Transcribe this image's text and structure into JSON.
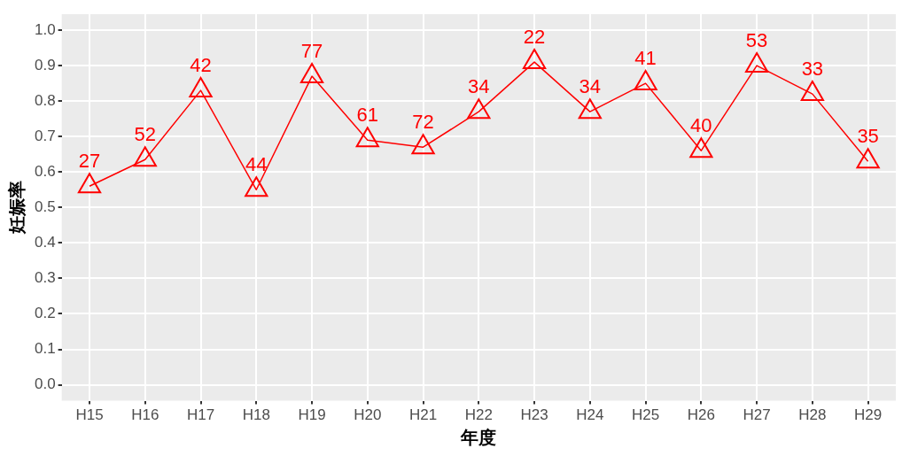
{
  "chart_data": {
    "type": "line",
    "xlabel": "年度",
    "ylabel": "妊娠率",
    "categories": [
      "H15",
      "H16",
      "H17",
      "H18",
      "H19",
      "H20",
      "H21",
      "H22",
      "H23",
      "H24",
      "H25",
      "H26",
      "H27",
      "H28",
      "H29"
    ],
    "series": [
      {
        "color": "#ff0000",
        "values": [
          0.56,
          0.635,
          0.83,
          0.55,
          0.87,
          0.69,
          0.67,
          0.77,
          0.91,
          0.77,
          0.85,
          0.66,
          0.9,
          0.82,
          0.63
        ]
      }
    ],
    "annotations": [
      {
        "text": "27",
        "x": "H15",
        "y": 0.56
      },
      {
        "text": "52",
        "x": "H16",
        "y": 0.635
      },
      {
        "text": "42",
        "x": "H17",
        "y": 0.83
      },
      {
        "text": "44",
        "x": "H18",
        "y": 0.55
      },
      {
        "text": "77",
        "x": "H19",
        "y": 0.87
      },
      {
        "text": "61",
        "x": "H20",
        "y": 0.69
      },
      {
        "text": "72",
        "x": "H21",
        "y": 0.67
      },
      {
        "text": "34",
        "x": "H22",
        "y": 0.77
      },
      {
        "text": "22",
        "x": "H23",
        "y": 0.91
      },
      {
        "text": "34",
        "x": "H24",
        "y": 0.77
      },
      {
        "text": "41",
        "x": "H25",
        "y": 0.85
      },
      {
        "text": "40",
        "x": "H26",
        "y": 0.66
      },
      {
        "text": "53",
        "x": "H27",
        "y": 0.9
      },
      {
        "text": "33",
        "x": "H28",
        "y": 0.82
      },
      {
        "text": "35",
        "x": "H29",
        "y": 0.63
      }
    ],
    "ylim": [
      -0.045,
      1.045
    ],
    "yticks": [
      {
        "value": 0,
        "label": "0.0"
      },
      {
        "value": 0.1,
        "label": "0.1"
      },
      {
        "value": 0.2,
        "label": "0.2"
      },
      {
        "value": 0.3,
        "label": "0.3"
      },
      {
        "value": 0.4,
        "label": "0.4"
      },
      {
        "value": 0.5,
        "label": "0.5"
      },
      {
        "value": 0.6,
        "label": "0.6"
      },
      {
        "value": 0.7,
        "label": "0.7"
      },
      {
        "value": 0.8,
        "label": "0.8"
      },
      {
        "value": 0.9,
        "label": "0.9"
      },
      {
        "value": 1,
        "label": "1.0"
      }
    ],
    "grid": true,
    "legend": false,
    "marker": "triangle",
    "line_style": "solid"
  }
}
